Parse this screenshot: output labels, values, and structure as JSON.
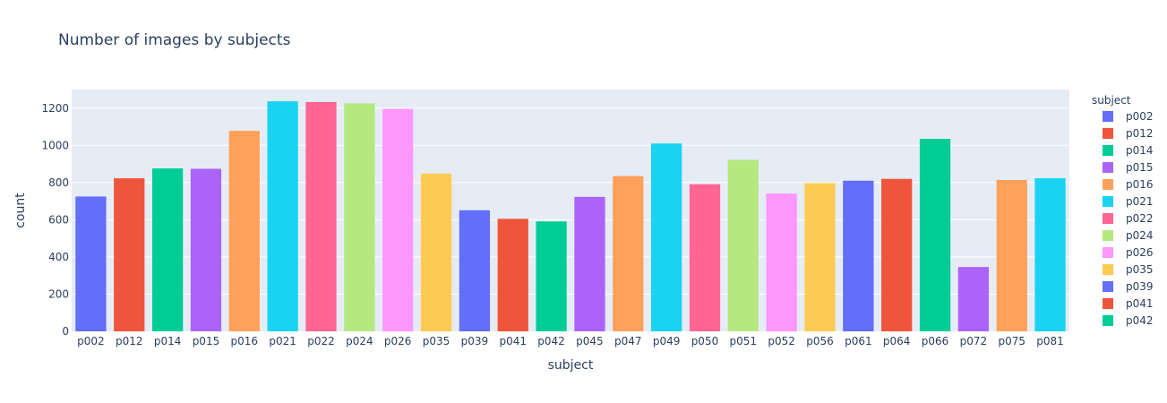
{
  "chart_data": {
    "type": "bar",
    "title": "Number of images by subjects",
    "xlabel": "subject",
    "ylabel": "count",
    "ylim": [
      0,
      1300
    ],
    "yticks": [
      0,
      200,
      400,
      600,
      800,
      1000,
      1200
    ],
    "grid": true,
    "legend_position": "right",
    "legend_title": "subject",
    "categories": [
      "p002",
      "p012",
      "p014",
      "p015",
      "p016",
      "p021",
      "p022",
      "p024",
      "p026",
      "p035",
      "p039",
      "p041",
      "p042",
      "p045",
      "p047",
      "p049",
      "p050",
      "p051",
      "p052",
      "p056",
      "p061",
      "p064",
      "p066",
      "p072",
      "p075",
      "p081"
    ],
    "values": [
      725,
      823,
      876,
      874,
      1078,
      1237,
      1233,
      1226,
      1196,
      848,
      651,
      605,
      591,
      723,
      835,
      1010,
      791,
      922,
      741,
      797,
      810,
      820,
      1035,
      346,
      814,
      823
    ],
    "colors": [
      "#636efa",
      "#EF553B",
      "#00cc96",
      "#ab63fa",
      "#FFA15A",
      "#19d3f3",
      "#FF6692",
      "#B6E880",
      "#FF97FF",
      "#FECB52",
      "#636efa",
      "#EF553B",
      "#00cc96",
      "#ab63fa",
      "#FFA15A",
      "#19d3f3",
      "#FF6692",
      "#B6E880",
      "#FF97FF",
      "#FECB52",
      "#636efa",
      "#EF553B",
      "#00cc96",
      "#ab63fa",
      "#FFA15A",
      "#19d3f3"
    ],
    "legend_entries": [
      "p002",
      "p012",
      "p014",
      "p015",
      "p016",
      "p021",
      "p022",
      "p024",
      "p026",
      "p035",
      "p039",
      "p041",
      "p042"
    ]
  }
}
